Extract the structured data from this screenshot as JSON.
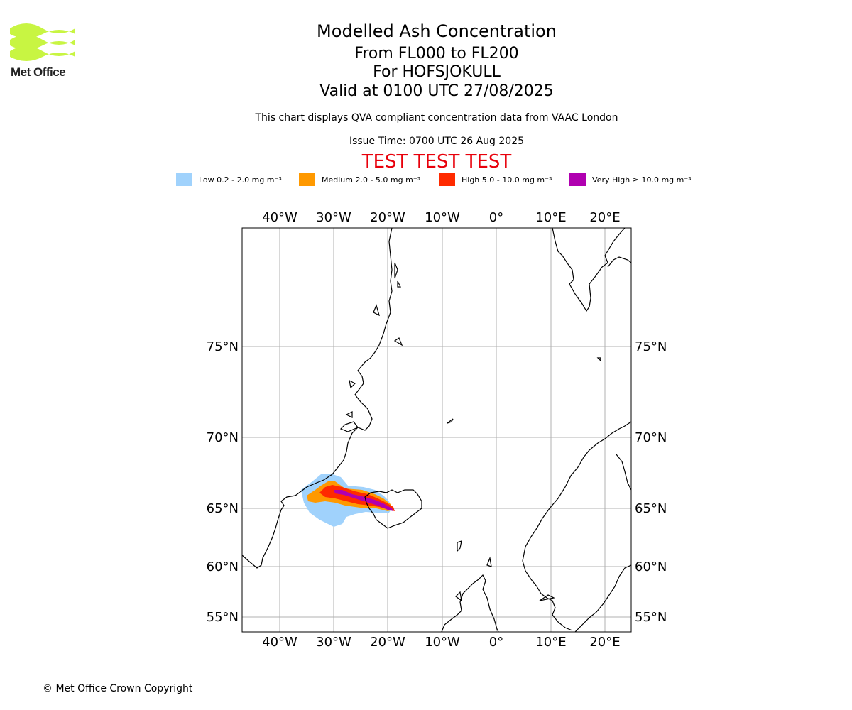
{
  "logo": {
    "text": "Met Office",
    "color": "#c8f542"
  },
  "title": {
    "line1": "Modelled Ash Concentration",
    "line2": "From FL000 to FL200",
    "line3": "For HOFSJOKULL",
    "line4": "Valid at 0100 UTC 27/08/2025"
  },
  "subtitle": "This chart displays QVA compliant concentration data from VAAC London",
  "issue_time": "Issue Time: 0700 UTC 26 Aug 2025",
  "test_banner": "TEST TEST TEST",
  "legend": [
    {
      "label": "Low 0.2 - 2.0 mg m⁻³",
      "color": "#a0d2fc"
    },
    {
      "label": "Medium 2.0 - 5.0 mg m⁻³",
      "color": "#ff9900"
    },
    {
      "label": "High 5.0 - 10.0 mg m⁻³",
      "color": "#ff2a00"
    },
    {
      "label": "Very High ≥ 10.0 mg m⁻³",
      "color": "#b000b0"
    }
  ],
  "map": {
    "lon_labels": [
      "40°W",
      "30°W",
      "20°W",
      "10°W",
      "0°",
      "10°E",
      "20°E"
    ],
    "lat_labels": [
      "75°N",
      "70°N",
      "65°N",
      "60°N",
      "55°N"
    ]
  },
  "copyright": "© Met Office Crown Copyright"
}
